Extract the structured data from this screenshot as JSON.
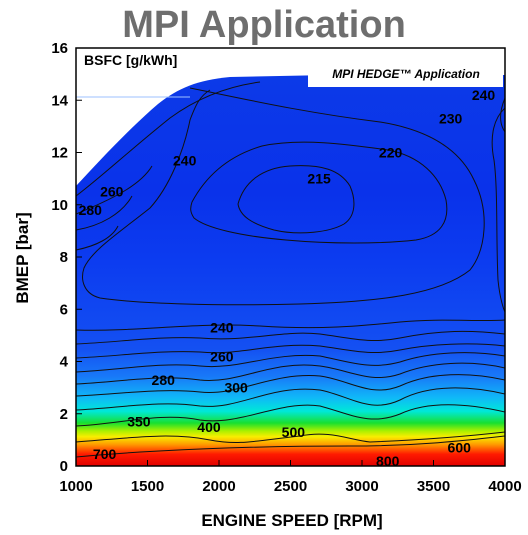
{
  "chart_data": {
    "type": "heatmap",
    "title": "MPI Application",
    "xlabel": "ENGINE SPEED [RPM]",
    "ylabel": "BMEP [bar]",
    "unit_label": "BSFC [g/kWh]",
    "legend_label": "MPI HEDGE™ Application",
    "xlim": [
      1000,
      4000
    ],
    "ylim": [
      0,
      16
    ],
    "x_ticks": [
      1000,
      1500,
      2000,
      2500,
      3000,
      3500,
      4000
    ],
    "y_ticks": [
      0,
      2,
      4,
      6,
      8,
      10,
      12,
      14,
      16
    ],
    "contour_labels": [
      {
        "text": "240",
        "x": 3850,
        "y": 14.2
      },
      {
        "text": "230",
        "x": 3620,
        "y": 13.3
      },
      {
        "text": "220",
        "x": 3200,
        "y": 12.0
      },
      {
        "text": "215",
        "x": 2700,
        "y": 11.0
      },
      {
        "text": "240",
        "x": 1760,
        "y": 11.7
      },
      {
        "text": "260",
        "x": 1250,
        "y": 10.5
      },
      {
        "text": "280",
        "x": 1100,
        "y": 9.8
      },
      {
        "text": "240",
        "x": 2020,
        "y": 5.3
      },
      {
        "text": "260",
        "x": 2020,
        "y": 4.2
      },
      {
        "text": "280",
        "x": 1610,
        "y": 3.3
      },
      {
        "text": "300",
        "x": 2120,
        "y": 3.0
      },
      {
        "text": "350",
        "x": 1440,
        "y": 1.7
      },
      {
        "text": "400",
        "x": 1930,
        "y": 1.5
      },
      {
        "text": "500",
        "x": 2520,
        "y": 1.3
      },
      {
        "text": "600",
        "x": 3680,
        "y": 0.7
      },
      {
        "text": "700",
        "x": 1200,
        "y": 0.45
      },
      {
        "text": "800",
        "x": 3180,
        "y": 0.2
      }
    ],
    "colors": {
      "high_bsfc": "#e60000",
      "mid_bsfc": "#14e61e",
      "low_bsfc": "#0a3cf0"
    }
  }
}
